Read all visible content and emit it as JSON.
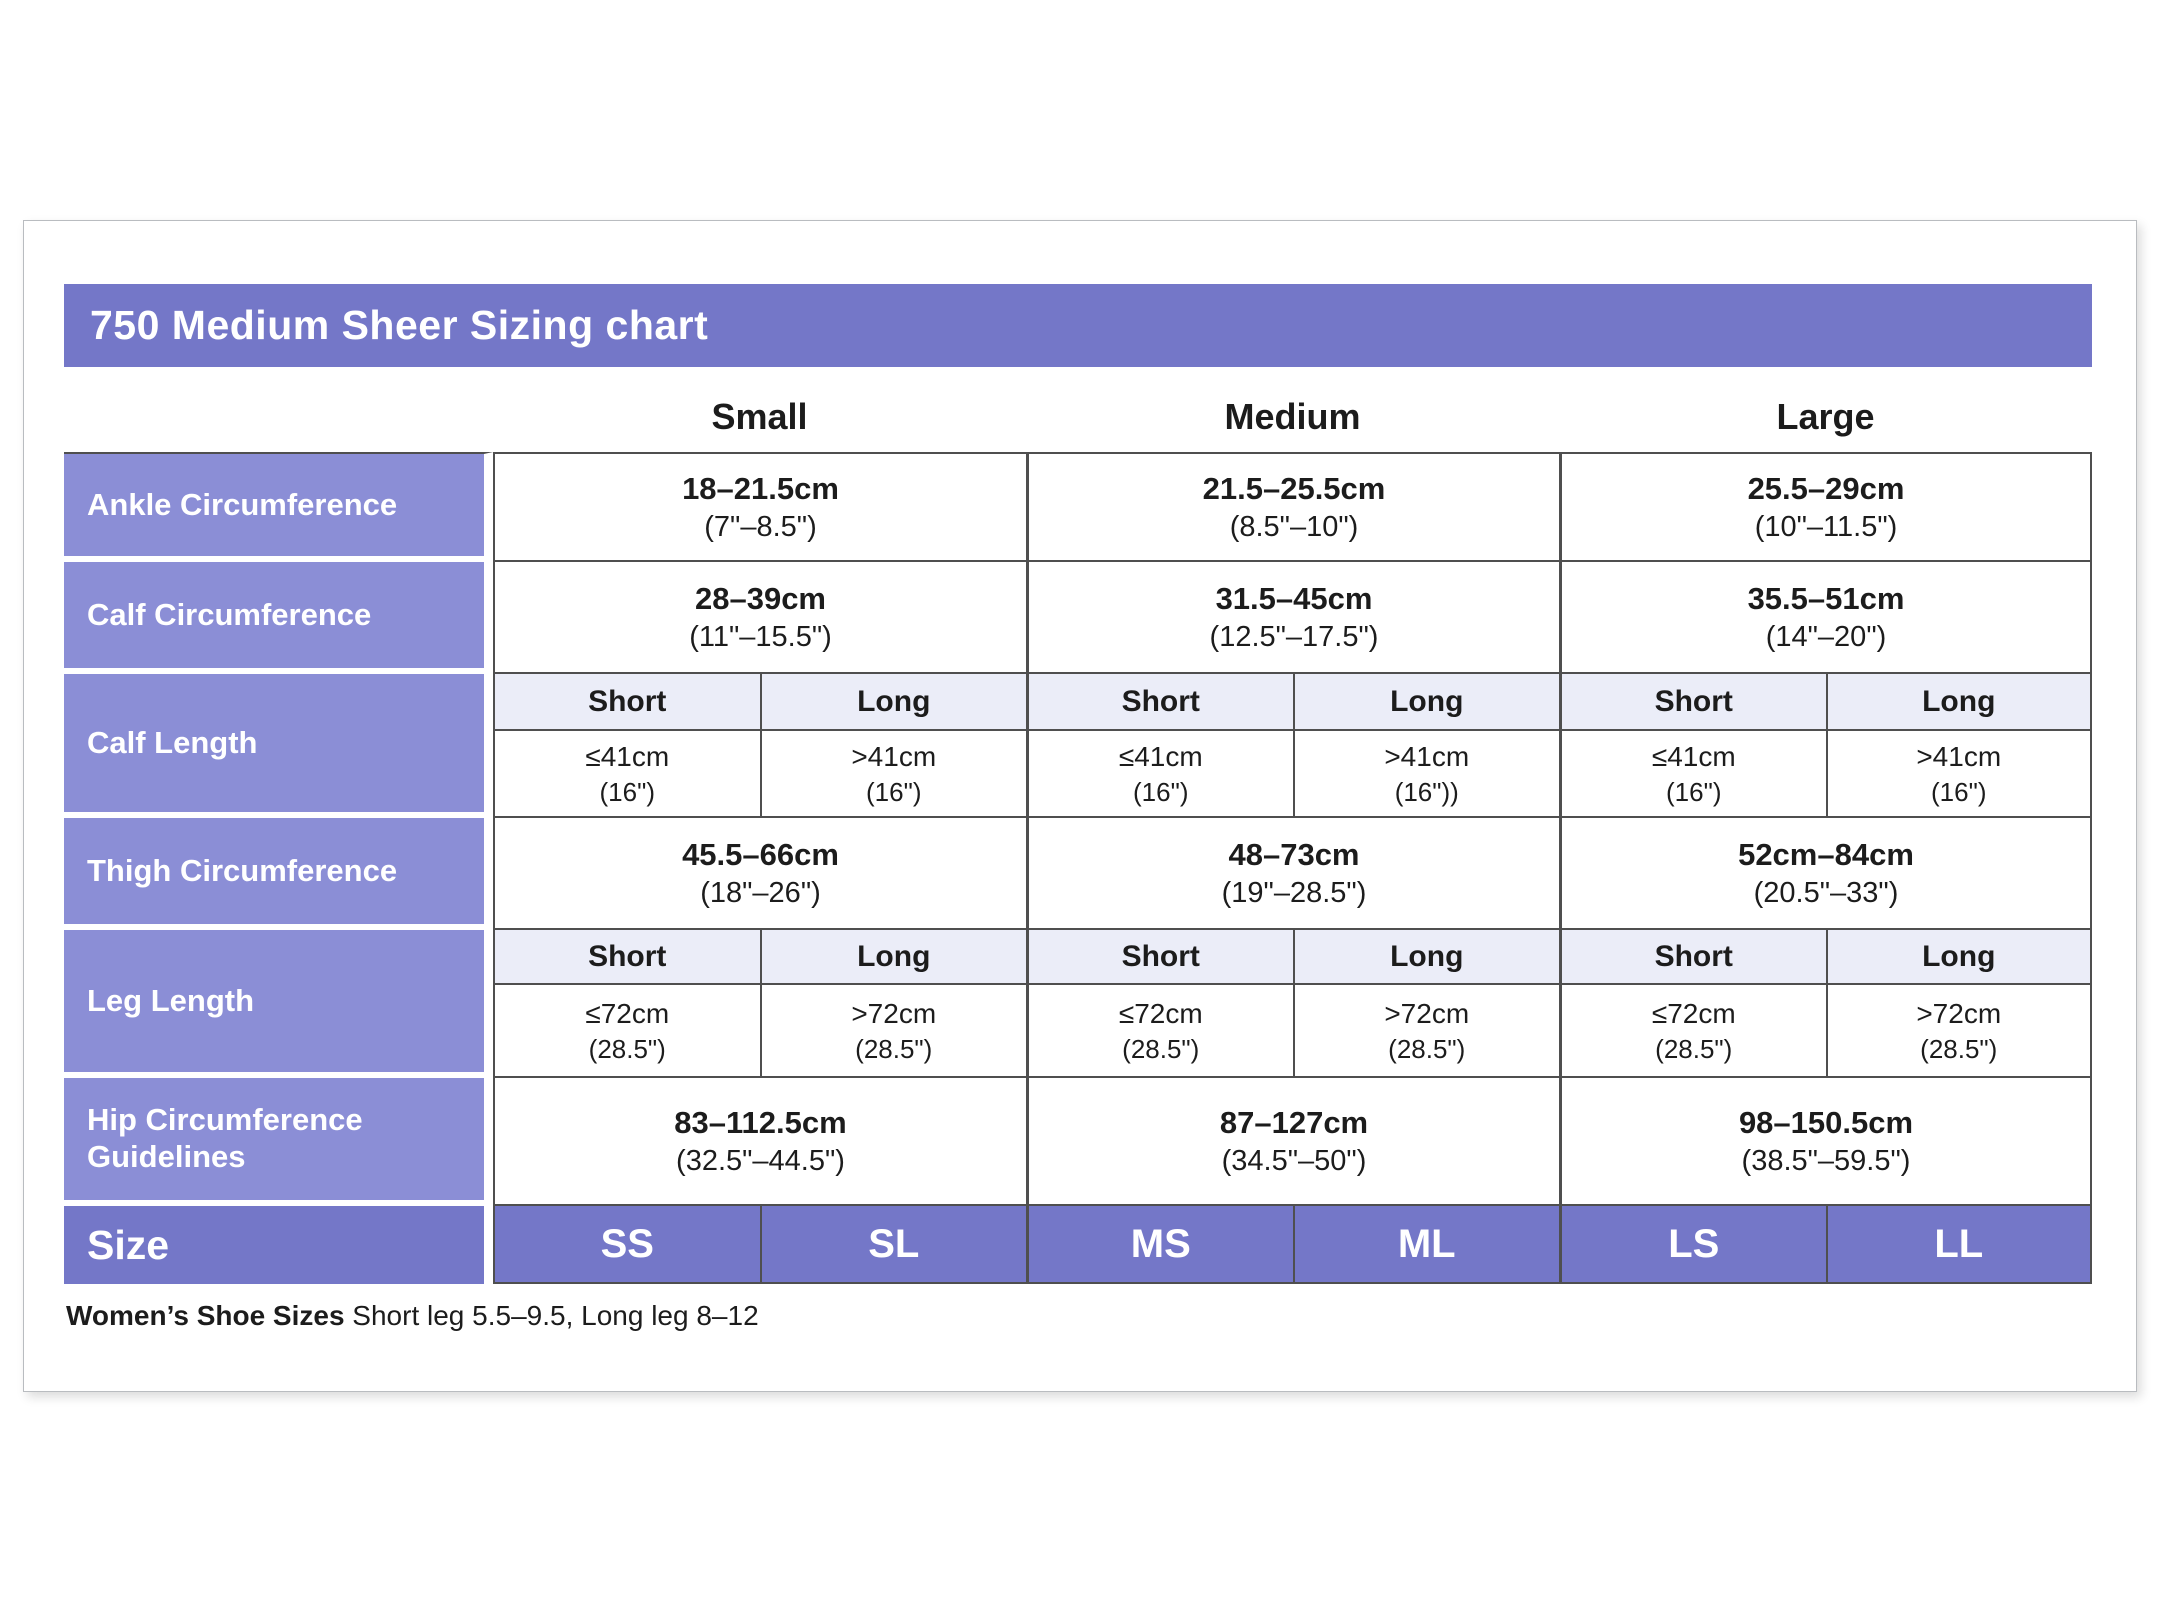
{
  "title": "750 Medium Sheer Sizing chart",
  "columns": {
    "small": "Small",
    "medium": "Medium",
    "large": "Large"
  },
  "subheader": {
    "short": "Short",
    "long": "Long"
  },
  "rows": {
    "ankle": {
      "label": "Ankle Circumference",
      "small": {
        "cm": "18–21.5cm",
        "inch": "(7\"–8.5\")"
      },
      "medium": {
        "cm": "21.5–25.5cm",
        "inch": "(8.5\"–10\")"
      },
      "large": {
        "cm": "25.5–29cm",
        "inch": "(10\"–11.5\")"
      }
    },
    "calf_circumference": {
      "label": "Calf Circumference",
      "small": {
        "cm": "28–39cm",
        "inch": "(11\"–15.5\")"
      },
      "medium": {
        "cm": "31.5–45cm",
        "inch": "(12.5\"–17.5\")"
      },
      "large": {
        "cm": "35.5–51cm",
        "inch": "(14\"–20\")"
      }
    },
    "calf_length": {
      "label": "Calf Length",
      "cells": [
        {
          "cm": "≤41cm",
          "inch": "(16\")"
        },
        {
          "cm": ">41cm",
          "inch": "(16\")"
        },
        {
          "cm": "≤41cm",
          "inch": "(16\")"
        },
        {
          "cm": ">41cm",
          "inch": "(16\"))"
        },
        {
          "cm": "≤41cm",
          "inch": "(16\")"
        },
        {
          "cm": ">41cm",
          "inch": "(16\")"
        }
      ]
    },
    "thigh": {
      "label": "Thigh Circumference",
      "small": {
        "cm": "45.5–66cm",
        "inch": "(18\"–26\")"
      },
      "medium": {
        "cm": "48–73cm",
        "inch": "(19\"–28.5\")"
      },
      "large": {
        "cm": "52cm–84cm",
        "inch": "(20.5\"–33\")"
      }
    },
    "leg_length": {
      "label": "Leg Length",
      "cells": [
        {
          "cm": "≤72cm",
          "inch": "(28.5\")"
        },
        {
          "cm": ">72cm",
          "inch": "(28.5\")"
        },
        {
          "cm": "≤72cm",
          "inch": "(28.5\")"
        },
        {
          "cm": ">72cm",
          "inch": "(28.5\")"
        },
        {
          "cm": "≤72cm",
          "inch": "(28.5\")"
        },
        {
          "cm": ">72cm",
          "inch": "(28.5\")"
        }
      ]
    },
    "hip": {
      "label_line1": "Hip Circumference",
      "label_line2": "Guidelines",
      "small": {
        "cm": "83–112.5cm",
        "inch": "(32.5\"–44.5\")"
      },
      "medium": {
        "cm": "87–127cm",
        "inch": "(34.5\"–50\")"
      },
      "large": {
        "cm": "98–150.5cm",
        "inch": "(38.5\"–59.5\")"
      }
    },
    "size": {
      "label": "Size",
      "values": [
        "SS",
        "SL",
        "MS",
        "ML",
        "LS",
        "LL"
      ]
    }
  },
  "footer": {
    "bold": "Women’s Shoe Sizes",
    "rest": " Short leg 5.5–9.5, Long leg 8–12"
  },
  "colors": {
    "header_purple": "#7477C8",
    "label_purple": "#8B8ED6",
    "subheader_lavender": "#EBEDF8",
    "border_dark": "#4f4f4f"
  }
}
